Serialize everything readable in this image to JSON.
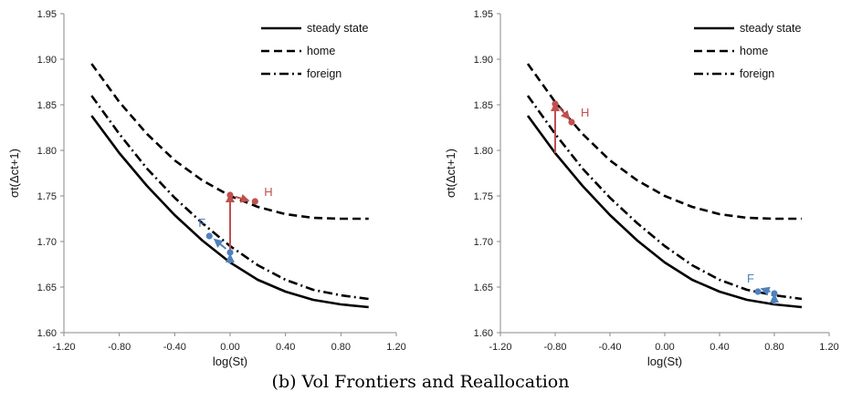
{
  "caption": "(b) Vol Frontiers and Reallocation",
  "colors": {
    "home_marker": "#c0504d",
    "foreign_marker": "#4f81bd",
    "line": "#000000"
  },
  "chart_data": [
    {
      "type": "line",
      "title": "",
      "xlabel": "log(St)",
      "ylabel": "σt(Δct+1)",
      "xlim": [
        -1.2,
        1.2
      ],
      "ylim": [
        1.6,
        1.95
      ],
      "xticks": [
        "-1.20",
        "-0.80",
        "-0.40",
        "0.00",
        "0.40",
        "0.80",
        "1.20"
      ],
      "yticks": [
        "1.60",
        "1.65",
        "1.70",
        "1.75",
        "1.80",
        "1.85",
        "1.90",
        "1.95"
      ],
      "grid": false,
      "legend_position": "top-right",
      "series": [
        {
          "name": "steady state",
          "style": "solid",
          "x": [
            -1.0,
            -0.8,
            -0.6,
            -0.4,
            -0.2,
            0.0,
            0.2,
            0.4,
            0.6,
            0.8,
            1.0
          ],
          "y": [
            1.838,
            1.797,
            1.761,
            1.729,
            1.701,
            1.677,
            1.658,
            1.645,
            1.636,
            1.631,
            1.628
          ]
        },
        {
          "name": "home",
          "style": "dashed",
          "x": [
            -1.0,
            -0.8,
            -0.6,
            -0.4,
            -0.2,
            0.0,
            0.2,
            0.4,
            0.6,
            0.8,
            1.0
          ],
          "y": [
            1.895,
            1.853,
            1.818,
            1.789,
            1.767,
            1.75,
            1.738,
            1.73,
            1.726,
            1.725,
            1.725
          ]
        },
        {
          "name": "foreign",
          "style": "dashdot",
          "x": [
            -1.0,
            -0.8,
            -0.6,
            -0.4,
            -0.2,
            0.0,
            0.2,
            0.4,
            0.6,
            0.8,
            1.0
          ],
          "y": [
            1.86,
            1.818,
            1.78,
            1.748,
            1.72,
            1.695,
            1.674,
            1.658,
            1.647,
            1.641,
            1.637
          ]
        }
      ],
      "annotations": [
        {
          "label": "H",
          "group": "home",
          "points": [
            [
              0.0,
              1.751
            ],
            [
              0.18,
              1.744
            ]
          ]
        },
        {
          "label": "F",
          "group": "foreign",
          "points": [
            [
              0.0,
              1.688
            ],
            [
              -0.15,
              1.706
            ]
          ]
        }
      ],
      "arrows": [
        {
          "group": "home",
          "from": [
            0.0,
            1.676
          ],
          "to": [
            0.0,
            1.751
          ]
        },
        {
          "group": "home",
          "from": [
            0.04,
            1.749
          ],
          "to": [
            0.13,
            1.745
          ]
        },
        {
          "group": "foreign",
          "from": [
            0.0,
            1.676
          ],
          "to": [
            0.0,
            1.685
          ]
        },
        {
          "group": "foreign",
          "from": [
            -0.03,
            1.692
          ],
          "to": [
            -0.11,
            1.702
          ]
        }
      ]
    },
    {
      "type": "line",
      "title": "",
      "xlabel": "log(St)",
      "ylabel": "σt(Δct+1)",
      "xlim": [
        -1.2,
        1.2
      ],
      "ylim": [
        1.6,
        1.95
      ],
      "xticks": [
        "-1.20",
        "-0.80",
        "-0.40",
        "0.00",
        "0.40",
        "0.80",
        "1.20"
      ],
      "yticks": [
        "1.60",
        "1.65",
        "1.70",
        "1.75",
        "1.80",
        "1.85",
        "1.90",
        "1.95"
      ],
      "grid": false,
      "legend_position": "top-right",
      "series": [
        {
          "name": "steady state",
          "style": "solid",
          "x": [
            -1.0,
            -0.8,
            -0.6,
            -0.4,
            -0.2,
            0.0,
            0.2,
            0.4,
            0.6,
            0.8,
            1.0
          ],
          "y": [
            1.838,
            1.797,
            1.761,
            1.729,
            1.701,
            1.677,
            1.658,
            1.645,
            1.636,
            1.631,
            1.628
          ]
        },
        {
          "name": "home",
          "style": "dashed",
          "x": [
            -1.0,
            -0.8,
            -0.6,
            -0.4,
            -0.2,
            0.0,
            0.2,
            0.4,
            0.6,
            0.8,
            1.0
          ],
          "y": [
            1.895,
            1.853,
            1.818,
            1.789,
            1.767,
            1.75,
            1.738,
            1.73,
            1.726,
            1.725,
            1.725
          ]
        },
        {
          "name": "foreign",
          "style": "dashdot",
          "x": [
            -1.0,
            -0.8,
            -0.6,
            -0.4,
            -0.2,
            0.0,
            0.2,
            0.4,
            0.6,
            0.8,
            1.0
          ],
          "y": [
            1.86,
            1.818,
            1.78,
            1.748,
            1.72,
            1.695,
            1.674,
            1.658,
            1.647,
            1.641,
            1.637
          ]
        }
      ],
      "annotations": [
        {
          "label": "H",
          "group": "home",
          "points": [
            [
              -0.8,
              1.851
            ],
            [
              -0.68,
              1.831
            ]
          ]
        },
        {
          "label": "F",
          "group": "foreign",
          "points": [
            [
              0.8,
              1.643
            ],
            [
              0.68,
              1.645
            ]
          ]
        }
      ],
      "arrows": [
        {
          "group": "home",
          "from": [
            -0.8,
            1.797
          ],
          "to": [
            -0.8,
            1.851
          ]
        },
        {
          "group": "home",
          "from": [
            -0.77,
            1.847
          ],
          "to": [
            -0.7,
            1.835
          ]
        },
        {
          "group": "foreign",
          "from": [
            0.8,
            1.631
          ],
          "to": [
            0.8,
            1.641
          ]
        },
        {
          "group": "foreign",
          "from": [
            0.77,
            1.645
          ],
          "to": [
            0.71,
            1.648
          ]
        }
      ]
    }
  ]
}
